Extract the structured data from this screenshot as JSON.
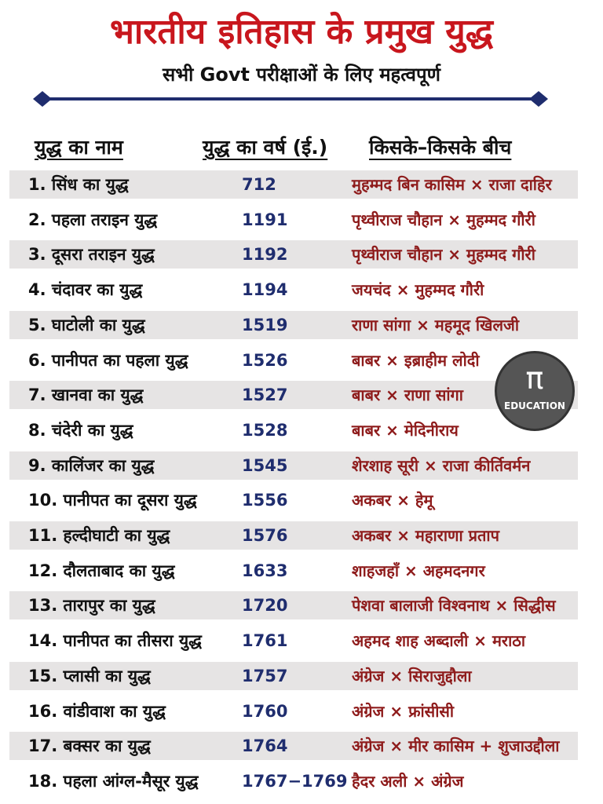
{
  "header": {
    "title": "भारतीय इतिहास के प्रमुख युद्ध",
    "subtitle": "सभी Govt परीक्षाओं के लिए महत्वपूर्ण"
  },
  "table": {
    "columns": [
      "युद्ध का नाम",
      "युद्ध का वर्ष (ई.)",
      "किसके–किसके बीच"
    ],
    "rows": [
      [
        "1. सिंध का युद्ध",
        712,
        "मुहम्मद बिन कासिम × राजा दाहिर"
      ],
      [
        "2. पहला तराइन युद्ध",
        1191,
        "पृथ्वीराज चौहान × मुहम्मद गौरी"
      ],
      [
        "3. दूसरा तराइन युद्ध",
        1192,
        "पृथ्वीराज चौहान × मुहम्मद गौरी"
      ],
      [
        "4. चंदावर का युद्ध",
        1194,
        "जयचंद × मुहम्मद गौरी"
      ],
      [
        "5. घाटोली का युद्ध",
        1519,
        "राणा सांगा × महमूद खिलजी"
      ],
      [
        "6. पानीपत का पहला युद्ध",
        1526,
        "बाबर × इब्राहीम लोदी"
      ],
      [
        "7. खानवा का युद्ध",
        1527,
        "बाबर × राणा सांगा"
      ],
      [
        "8. चंदेरी का युद्ध",
        1528,
        "बाबर × मेदिनीराय"
      ],
      [
        "9. कालिंजर का युद्ध",
        1545,
        "शेरशाह सूरी × राजा कीर्तिवर्मन"
      ],
      [
        "10. पानीपत का दूसरा युद्ध",
        1556,
        "अकबर × हेमू"
      ],
      [
        "11. हल्दीघाटी का युद्ध",
        1576,
        "अकबर × महाराणा प्रताप"
      ],
      [
        "12. दौलताबाद का युद्ध",
        1633,
        "शाहजहाँ × अहमदनगर"
      ],
      [
        "13. तारापुर का युद्ध",
        1720,
        "पेशवा बालाजी विश्वनाथ × सिद्धीस"
      ],
      [
        "14. पानीपत का तीसरा युद्ध",
        1761,
        "अहमद शाह अब्दाली × मराठा"
      ],
      [
        "15. प्लासी का युद्ध",
        1757,
        "अंग्रेज × सिराजुद्दौला"
      ],
      [
        "16. वांडीवाश का युद्ध",
        1760,
        "अंग्रेज × फ्रांसीसी"
      ],
      [
        "17. बक्सर का युद्ध",
        1764,
        "अंग्रेज × मीर कासिम + शुजाउद्दौला"
      ],
      [
        "18. पहला आंग्ल-मैसूर युद्ध",
        "1767−1769",
        "हैदर अली × अंग्रेज"
      ]
    ]
  },
  "logo": {
    "symbol": "π",
    "text": "EDUCATION"
  }
}
